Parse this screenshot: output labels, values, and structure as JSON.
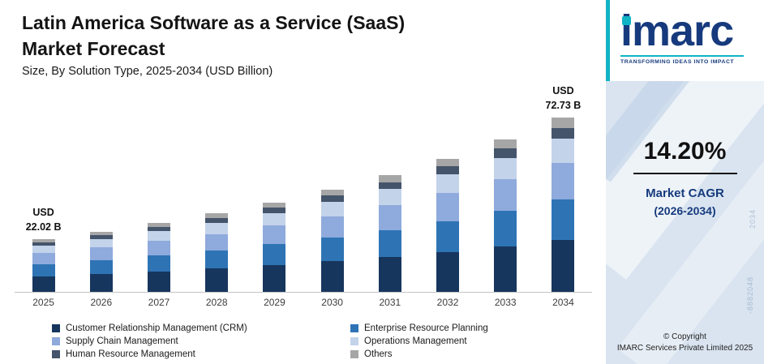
{
  "header": {
    "title": "Latin America Software as a Service (SaaS)\nMarket Forecast",
    "subtitle": "Size, By Solution Type, 2025-2034 (USD Billion)"
  },
  "chart_data": {
    "type": "bar",
    "stacked": true,
    "title": "Latin America Software as a Service (SaaS) Market Forecast",
    "subtitle": "Size, By Solution Type, 2025-2034 (USD Billion)",
    "xlabel": "",
    "ylabel": "USD Billion",
    "ylim": [
      0,
      80
    ],
    "grid": false,
    "legend_position": "bottom",
    "categories": [
      "2025",
      "2026",
      "2027",
      "2028",
      "2029",
      "2030",
      "2031",
      "2032",
      "2033",
      "2034"
    ],
    "totals": [
      22.02,
      25.15,
      28.72,
      32.8,
      37.45,
      42.77,
      48.85,
      55.78,
      63.7,
      72.73
    ],
    "series": [
      {
        "name": "Customer Relationship Management (CRM)",
        "color": "#17365d",
        "values": [
          6.61,
          7.55,
          8.62,
          9.84,
          11.24,
          12.83,
          14.66,
          16.73,
          19.11,
          21.82
        ]
      },
      {
        "name": "Enterprise Resource Planning",
        "color": "#2e74b5",
        "values": [
          5.06,
          5.78,
          6.61,
          7.54,
          8.61,
          9.84,
          11.24,
          12.83,
          14.65,
          16.73
        ]
      },
      {
        "name": "Supply Chain Management",
        "color": "#8faadc",
        "values": [
          4.62,
          5.28,
          6.03,
          6.89,
          7.86,
          8.98,
          10.26,
          11.71,
          13.38,
          15.27
        ]
      },
      {
        "name": "Operations Management",
        "color": "#c3d3ea",
        "values": [
          3.08,
          3.52,
          4.02,
          4.59,
          5.24,
          5.99,
          6.84,
          7.81,
          8.92,
          10.18
        ]
      },
      {
        "name": "Human Resource Management",
        "color": "#44546a",
        "values": [
          1.32,
          1.51,
          1.72,
          1.97,
          2.25,
          2.57,
          2.93,
          3.35,
          3.82,
          4.36
        ]
      },
      {
        "name": "Others",
        "color": "#a6a6a6",
        "values": [
          1.33,
          1.51,
          1.72,
          1.97,
          2.25,
          2.56,
          2.92,
          3.35,
          3.82,
          4.37
        ]
      }
    ],
    "annotations": [
      {
        "category": "2025",
        "text": "USD\n22.02 B"
      },
      {
        "category": "2034",
        "text": "USD\n72.73 B"
      }
    ]
  },
  "sidebar": {
    "logo_text": "imarc",
    "tagline": "TRANSFORMING IDEAS INTO IMPACT",
    "cagr_value": "14.20%",
    "cagr_label": "Market CAGR",
    "cagr_period": "(2026-2034)",
    "copyright_line1": "© Copyright",
    "copyright_line2": "IMARC Services Private Limited 2025",
    "background_texts": {
      "0": "-8882048",
      "1": "2034"
    }
  }
}
